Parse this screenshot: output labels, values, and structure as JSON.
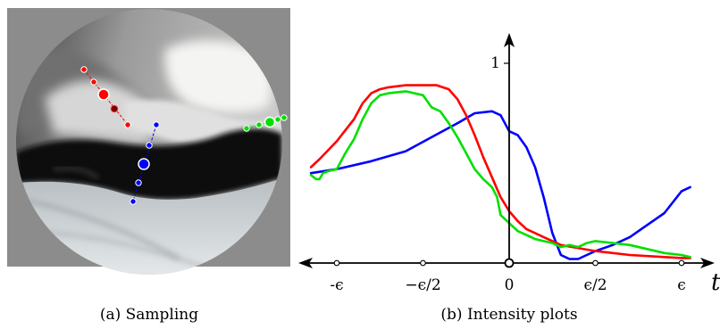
{
  "panel_a": {
    "caption": "(a) Sampling",
    "background": "#8c8c8c",
    "samples": [
      {
        "name": "red",
        "color": "#ff0000"
      },
      {
        "name": "blue",
        "color": "#0000ff"
      },
      {
        "name": "green",
        "color": "#00e000"
      }
    ]
  },
  "panel_b": {
    "caption": "(b) Intensity plots"
  },
  "chart_data": {
    "type": "line",
    "title": "",
    "xlabel": "t",
    "ylabel": "",
    "x_ticks": [
      "-ϵ",
      "−ϵ/2",
      "0",
      "ϵ/2",
      "ϵ"
    ],
    "x_tick_values": [
      -1,
      -0.5,
      0,
      0.5,
      1
    ],
    "y_ticks": [
      "1"
    ],
    "y_tick_values": [
      1
    ],
    "xlim": [
      -1.12,
      1.12
    ],
    "ylim": [
      -0.06,
      1.12
    ],
    "legend": "none",
    "grid": false,
    "series": [
      {
        "color": "#0000ff",
        "x": [
          -1.15,
          -1.0,
          -0.8,
          -0.6,
          -0.45,
          -0.3,
          -0.2,
          -0.1,
          -0.05,
          0.0,
          0.05,
          0.1,
          0.15,
          0.2,
          0.25,
          0.3,
          0.35,
          0.4,
          0.45,
          0.5,
          0.6,
          0.7,
          0.8,
          0.9,
          1.0,
          1.05
        ],
        "y": [
          0.45,
          0.47,
          0.51,
          0.56,
          0.63,
          0.7,
          0.75,
          0.76,
          0.74,
          0.66,
          0.64,
          0.58,
          0.48,
          0.33,
          0.15,
          0.04,
          0.02,
          0.02,
          0.04,
          0.06,
          0.09,
          0.13,
          0.19,
          0.25,
          0.36,
          0.38
        ]
      },
      {
        "color": "#ff0000",
        "x": [
          -1.15,
          -1.1,
          -1.0,
          -0.9,
          -0.85,
          -0.8,
          -0.75,
          -0.7,
          -0.6,
          -0.5,
          -0.42,
          -0.35,
          -0.3,
          -0.25,
          -0.2,
          -0.15,
          -0.1,
          -0.05,
          0.0,
          0.05,
          0.1,
          0.2,
          0.3,
          0.5,
          0.7,
          0.9,
          1.0,
          1.05
        ],
        "y": [
          0.48,
          0.52,
          0.61,
          0.72,
          0.8,
          0.85,
          0.87,
          0.88,
          0.89,
          0.89,
          0.89,
          0.87,
          0.82,
          0.74,
          0.64,
          0.53,
          0.43,
          0.33,
          0.26,
          0.21,
          0.17,
          0.13,
          0.09,
          0.06,
          0.04,
          0.03,
          0.025,
          0.025
        ]
      },
      {
        "color": "#00e000",
        "x": [
          -1.15,
          -1.12,
          -1.1,
          -1.08,
          -1.05,
          -1.0,
          -0.95,
          -0.9,
          -0.85,
          -0.8,
          -0.75,
          -0.7,
          -0.6,
          -0.5,
          -0.45,
          -0.4,
          -0.35,
          -0.3,
          -0.25,
          -0.2,
          -0.15,
          -0.1,
          -0.07,
          -0.05,
          0.0,
          0.05,
          0.1,
          0.15,
          0.2,
          0.25,
          0.3,
          0.35,
          0.4,
          0.45,
          0.5,
          0.6,
          0.7,
          0.8,
          0.9,
          1.0,
          1.05
        ],
        "y": [
          0.44,
          0.42,
          0.42,
          0.45,
          0.46,
          0.47,
          0.55,
          0.62,
          0.72,
          0.8,
          0.84,
          0.85,
          0.86,
          0.84,
          0.78,
          0.76,
          0.7,
          0.63,
          0.55,
          0.47,
          0.42,
          0.38,
          0.33,
          0.24,
          0.2,
          0.16,
          0.14,
          0.12,
          0.11,
          0.1,
          0.08,
          0.09,
          0.08,
          0.1,
          0.11,
          0.1,
          0.09,
          0.07,
          0.05,
          0.04,
          0.03
        ]
      }
    ]
  }
}
